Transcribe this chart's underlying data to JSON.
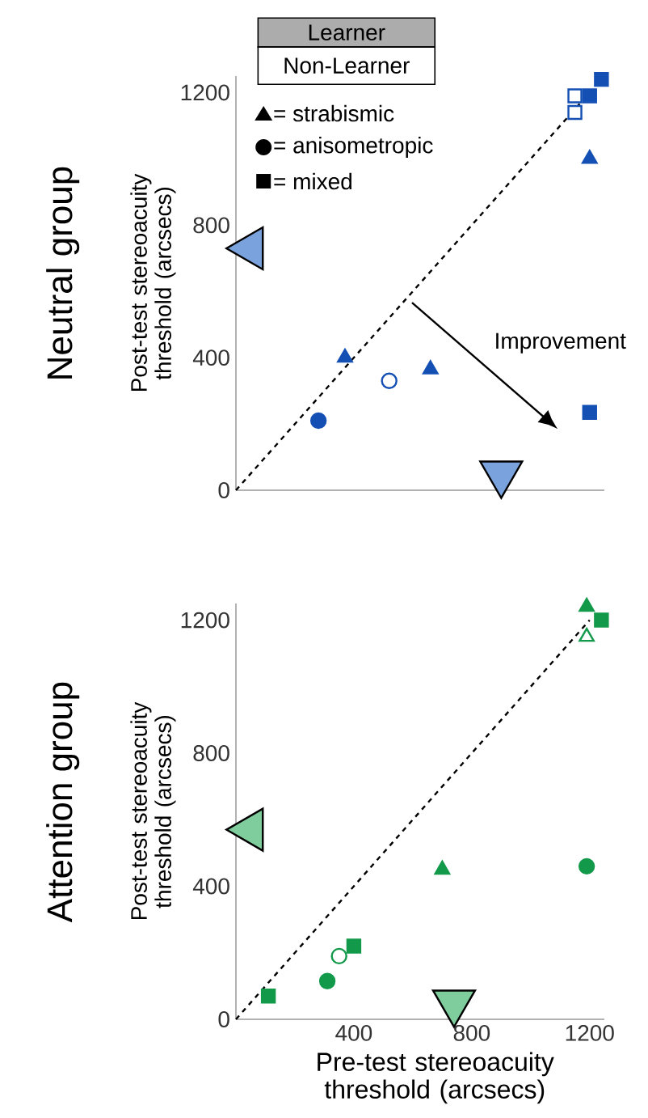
{
  "chart_data": [
    {
      "type": "scatter",
      "title": "Neutral group",
      "ylabel": "Post-test stereoacuity threshold (arcsecs)",
      "xlim": [
        0,
        1250
      ],
      "ylim": [
        0,
        1250
      ],
      "xticks": [
        400,
        800,
        1200
      ],
      "yticks": [
        0,
        400,
        800,
        1200
      ],
      "tick_labels": "y",
      "annotations": [
        "Learner",
        "Non-Learner",
        "= strabismic",
        "= anisometropic",
        "= mixed",
        "Improvement"
      ],
      "series": [
        {
          "type": "line",
          "color": "#000000",
          "line_style": "dashed",
          "marker": "none",
          "x": [
            0,
            1200
          ],
          "values": [
            0,
            1200
          ]
        },
        {
          "marker": "square-open",
          "color": "#1450b4",
          "x": [
            1150,
            1150
          ],
          "values": [
            1190,
            1140
          ]
        },
        {
          "marker": "triangle",
          "color": "#1450b4",
          "x": [
            1200,
            370,
            660
          ],
          "values": [
            1000,
            400,
            365
          ]
        },
        {
          "marker": "circle",
          "color": "#1450b4",
          "x": [
            280
          ],
          "values": [
            210
          ]
        },
        {
          "marker": "circle-open",
          "color": "#1450b4",
          "x": [
            520
          ],
          "values": [
            330
          ]
        },
        {
          "marker": "square",
          "color": "#1450b4",
          "x": [
            1240,
            1200,
            1200
          ],
          "values": [
            1240,
            1190,
            235
          ]
        },
        {
          "marker": "triangle-left",
          "color": "#7aa2dc",
          "x": [
            50
          ],
          "values": [
            730
          ]
        },
        {
          "marker": "triangle-down",
          "color": "#7aa2dc",
          "x": [
            900
          ],
          "values": [
            50
          ]
        }
      ]
    },
    {
      "type": "scatter",
      "title": "Attention group",
      "ylabel": "Post-test stereoacuity threshold (arcsecs)",
      "xlabel": "Pre-test stereoacuity threshold (arcsecs)",
      "xlim": [
        0,
        1250
      ],
      "ylim": [
        0,
        1250
      ],
      "xticks": [
        400,
        800,
        1200
      ],
      "yticks": [
        0,
        400,
        800,
        1200
      ],
      "series": [
        {
          "type": "line",
          "color": "#000000",
          "line_style": "dashed",
          "marker": "none",
          "x": [
            0,
            1200
          ],
          "values": [
            0,
            1200
          ]
        },
        {
          "marker": "triangle",
          "color": "#12994a",
          "x": [
            1190,
            700
          ],
          "values": [
            1240,
            450
          ]
        },
        {
          "marker": "triangle-open",
          "color": "#12994a",
          "x": [
            1190
          ],
          "values": [
            1150
          ]
        },
        {
          "marker": "circle",
          "color": "#12994a",
          "x": [
            1190,
            310
          ],
          "values": [
            460,
            115
          ]
        },
        {
          "marker": "circle-open",
          "color": "#12994a",
          "x": [
            350
          ],
          "values": [
            190
          ]
        },
        {
          "marker": "square",
          "color": "#12994a",
          "x": [
            1240,
            400,
            110
          ],
          "values": [
            1200,
            220,
            70
          ]
        },
        {
          "marker": "triangle-left",
          "color": "#7fcc9c",
          "x": [
            50
          ],
          "values": [
            570
          ]
        },
        {
          "marker": "triangle-down",
          "color": "#7fcc9c",
          "x": [
            740
          ],
          "values": [
            50
          ]
        }
      ]
    }
  ]
}
